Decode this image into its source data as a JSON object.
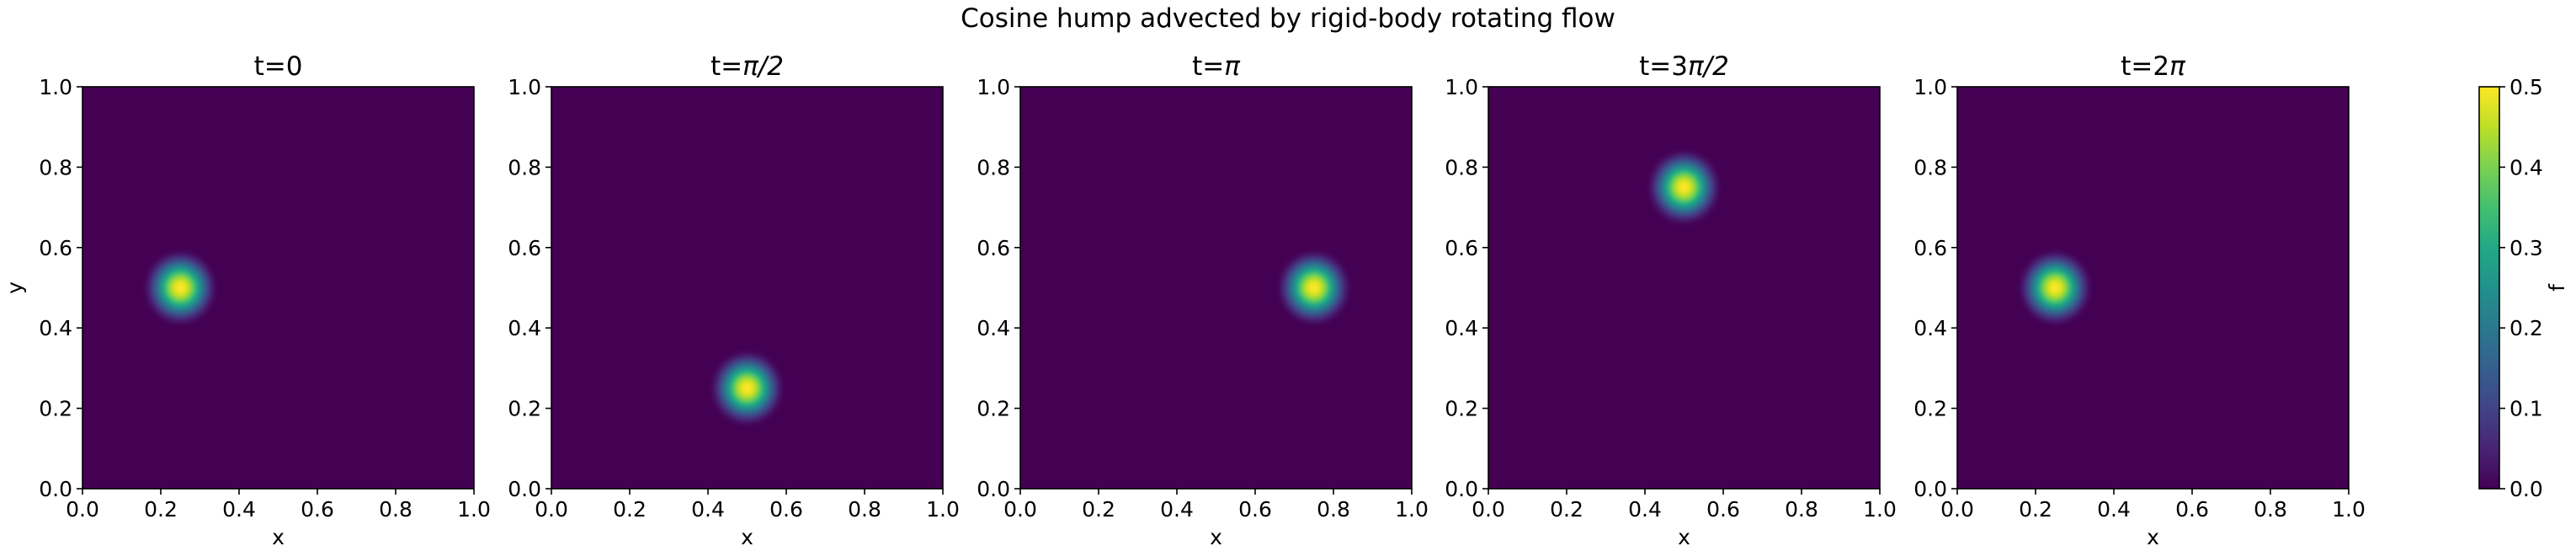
{
  "chart_data": {
    "type": "heatmap",
    "title": "Cosine hump advected by rigid-body rotating flow",
    "colormap": "viridis",
    "background_color": "#440154",
    "xlim": [
      0.0,
      1.0
    ],
    "ylim": [
      0.0,
      1.0
    ],
    "x_ticks": [
      "0.0",
      "0.2",
      "0.4",
      "0.6",
      "0.8",
      "1.0"
    ],
    "y_ticks": [
      "0.0",
      "0.2",
      "0.4",
      "0.6",
      "0.8",
      "1.0"
    ],
    "xlabel": "x",
    "ylabel": "y",
    "hump": {
      "peak_value": 0.5,
      "radius": 0.1
    },
    "panels": [
      {
        "title": "t=0",
        "title_plain": "t=0",
        "title_pi": "",
        "center": [
          0.25,
          0.5
        ]
      },
      {
        "title": "t=π/2",
        "title_plain": "t=",
        "title_pi": "π/2",
        "center": [
          0.5,
          0.25
        ]
      },
      {
        "title": "t=π",
        "title_plain": "t=",
        "title_pi": "π",
        "center": [
          0.75,
          0.5
        ]
      },
      {
        "title": "t=3π/2",
        "title_plain": "t=3",
        "title_pi": "π/2",
        "center": [
          0.5,
          0.75
        ]
      },
      {
        "title": "t=2π",
        "title_plain": "t=2",
        "title_pi": "π",
        "center": [
          0.25,
          0.5
        ]
      }
    ],
    "colorbar": {
      "label": "f",
      "vmin": 0.0,
      "vmax": 0.5,
      "ticks": [
        "0.0",
        "0.1",
        "0.2",
        "0.3",
        "0.4",
        "0.5"
      ]
    },
    "grid": false
  }
}
